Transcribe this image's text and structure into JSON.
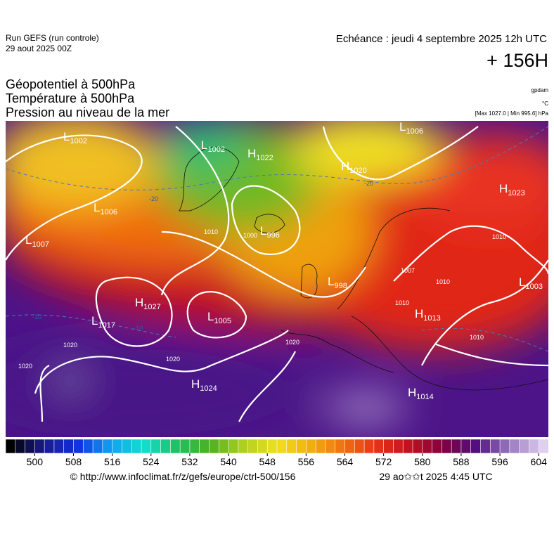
{
  "header": {
    "run": "Run GEFS (run controle)",
    "run_date": "29 aout 2025 00Z",
    "valid": "Echéance : jeudi 4 septembre 2025 12h UTC",
    "lead": "+ 156H",
    "fields": [
      "Géopotentiel à 500hPa",
      "Température à 500hPa",
      "Pression au niveau de la mer"
    ],
    "units": [
      "gpdam",
      "°C",
      "[Max 1027.0 | Min 995.6] hPa"
    ]
  },
  "map": {
    "centers": [
      {
        "kind": "L",
        "value": 1002
      },
      {
        "kind": "L",
        "value": 1002
      },
      {
        "kind": "H",
        "value": 1022
      },
      {
        "kind": "H",
        "value": 1020
      },
      {
        "kind": "L",
        "value": 1006
      },
      {
        "kind": "H",
        "value": 1023
      },
      {
        "kind": "L",
        "value": 1006
      },
      {
        "kind": "L",
        "value": 996
      },
      {
        "kind": "L",
        "value": 1007
      },
      {
        "kind": "L",
        "value": 1003
      },
      {
        "kind": "L",
        "value": 998
      },
      {
        "kind": "H",
        "value": 1027
      },
      {
        "kind": "L",
        "value": 1005
      },
      {
        "kind": "L",
        "value": 1017
      },
      {
        "kind": "H",
        "value": 1013
      },
      {
        "kind": "H",
        "value": 1024
      },
      {
        "kind": "H",
        "value": 1014
      }
    ],
    "isobar_labels": [
      1010,
      1000,
      1007,
      1010,
      1010,
      1010,
      1010,
      1020,
      1020,
      1020,
      1020
    ],
    "temperature_labels": [
      -20,
      -20,
      -10,
      -10
    ]
  },
  "colorbar": {
    "range": [
      494,
      606
    ],
    "ticks": [
      500,
      508,
      516,
      524,
      532,
      540,
      548,
      556,
      564,
      572,
      580,
      588,
      596,
      604
    ],
    "stops": [
      "#000000",
      "#1a1a8c",
      "#1030e0",
      "#10a0f0",
      "#10e0d0",
      "#20c060",
      "#50b020",
      "#b0d020",
      "#f0e020",
      "#f0b010",
      "#f07010",
      "#e83018",
      "#c01020",
      "#800040",
      "#501080",
      "#9a7ac0",
      "#e0d0f0"
    ]
  },
  "footer": {
    "url": "© http://www.infoclimat.fr/z/gefs/europe/ctrl-500/156",
    "stamp": "29 ao✩✩t 2025  4:45 UTC"
  }
}
